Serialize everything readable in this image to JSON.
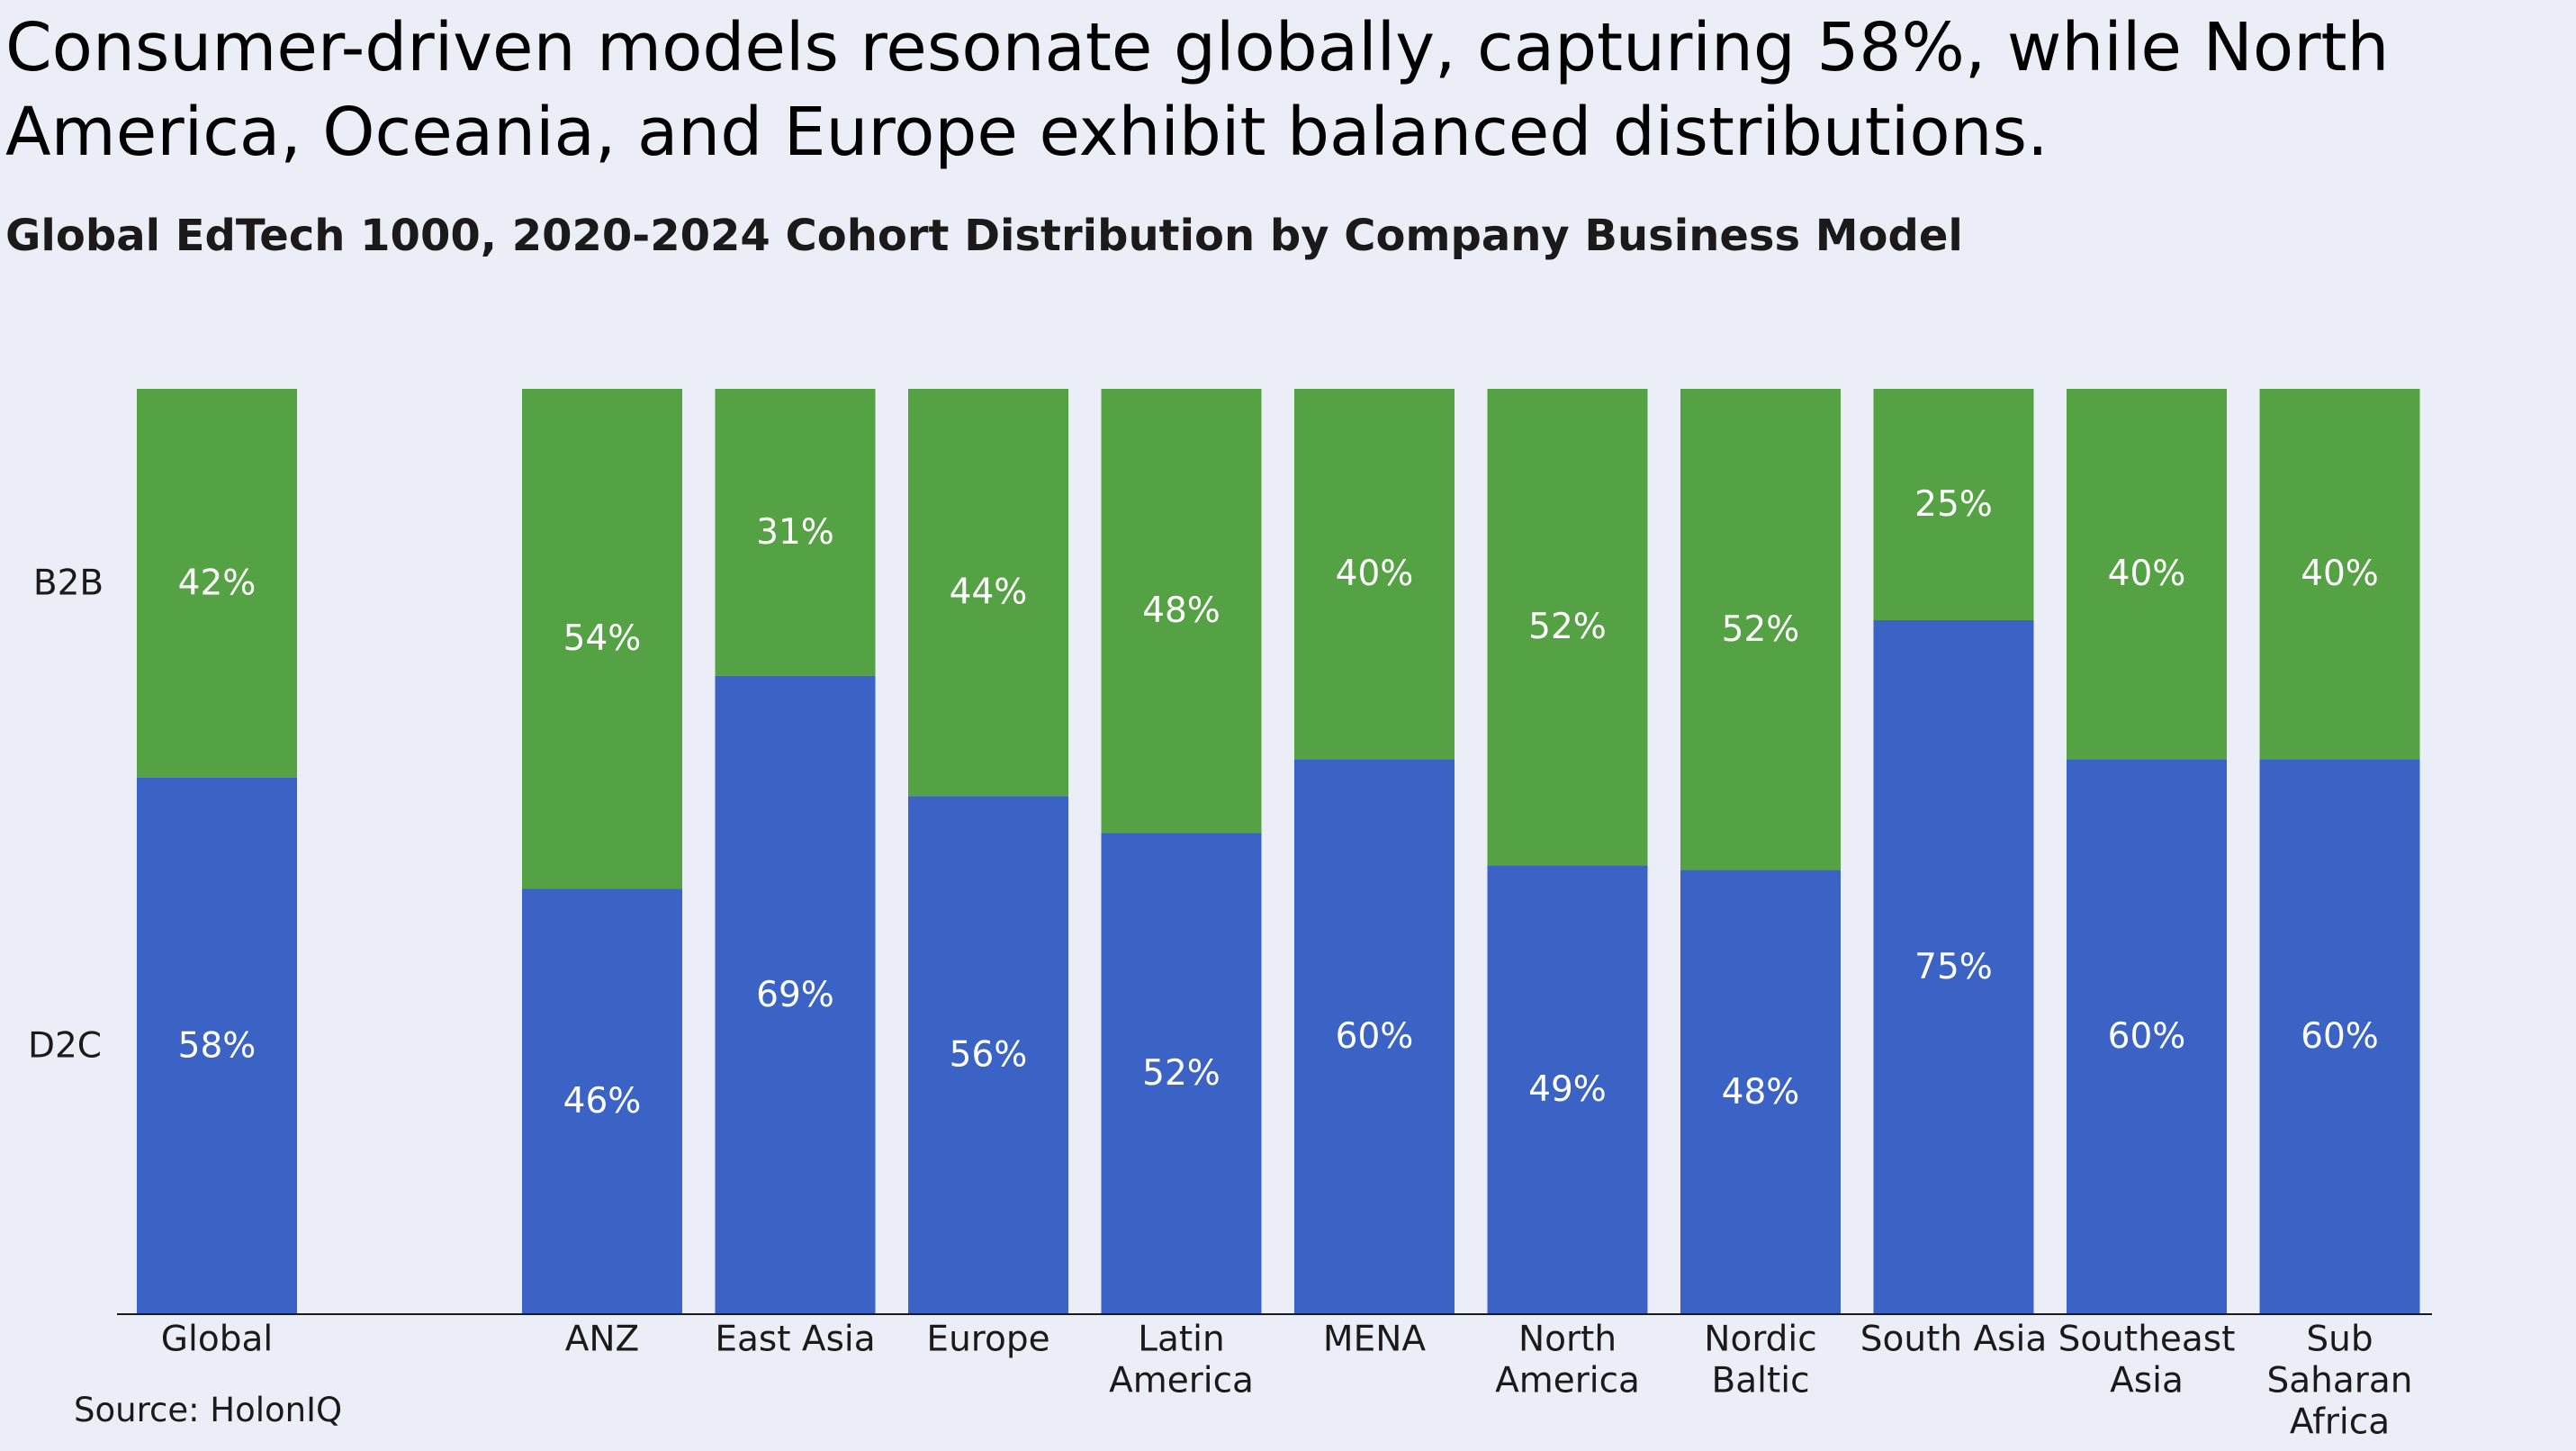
{
  "header": {
    "title": "Consumer-driven models resonate globally, capturing 58%, while North America, Oceania, and Europe exhibit balanced distributions.",
    "subtitle": "Global EdTech 1000, 2020-2024 Cohort Distribution by Company Business Model"
  },
  "footer": {
    "source": "Source: HolonIQ"
  },
  "colors": {
    "b2b": "#55a244",
    "d2c": "#3b63c6",
    "background": "#ebeef6",
    "bar_label": "#ffffff",
    "axis": "#1a1a1a"
  },
  "chart_data": {
    "type": "bar",
    "stacked": true,
    "percent_scale": true,
    "categories": [
      [
        "Global"
      ],
      [
        "ANZ"
      ],
      [
        "East Asia"
      ],
      [
        "Europe"
      ],
      [
        "Latin",
        "America"
      ],
      [
        "MENA"
      ],
      [
        "North",
        "America"
      ],
      [
        "Nordic",
        "Baltic"
      ],
      [
        "South Asia"
      ],
      [
        "Southeast",
        "Asia"
      ],
      [
        "Sub",
        "Saharan",
        "Africa"
      ]
    ],
    "series": [
      {
        "name": "D2C",
        "color": "#3b63c6",
        "values": [
          58,
          46,
          69,
          56,
          52,
          60,
          49,
          48,
          75,
          60,
          60
        ],
        "labels": [
          "58%",
          "46%",
          "69%",
          "56%",
          "52%",
          "60%",
          "49%",
          "48%",
          "75%",
          "60%",
          "60%"
        ]
      },
      {
        "name": "B2B",
        "color": "#55a244",
        "values": [
          42,
          54,
          31,
          44,
          48,
          40,
          52,
          52,
          25,
          40,
          40
        ],
        "labels": [
          "42%",
          "54%",
          "31%",
          "44%",
          "48%",
          "40%",
          "52%",
          "52%",
          "25%",
          "40%",
          "40%"
        ]
      }
    ],
    "ylim": [
      0,
      100
    ],
    "legend_position": "left, aligned with Global bar segments",
    "grid": false
  }
}
